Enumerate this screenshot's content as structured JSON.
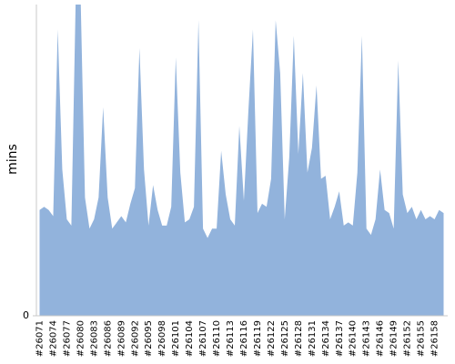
{
  "chart_data": {
    "type": "area",
    "y_label": "mins",
    "color": "#92b3dc",
    "categories": [
      "#26071",
      null,
      null,
      "#26074",
      null,
      null,
      "#26077",
      null,
      null,
      "#26080",
      null,
      null,
      "#26083",
      null,
      null,
      "#26086",
      null,
      null,
      "#26089",
      null,
      null,
      "#26092",
      null,
      null,
      "#26095",
      null,
      null,
      "#26098",
      null,
      null,
      "#26101",
      null,
      null,
      "#26104",
      null,
      null,
      "#26107",
      null,
      null,
      "#26110",
      null,
      null,
      "#26113",
      null,
      null,
      "#26116",
      null,
      null,
      "#26119",
      null,
      null,
      "#26122",
      null,
      null,
      "#26125",
      null,
      null,
      "#26128",
      null,
      null,
      "#26131",
      null,
      null,
      "#26134",
      null,
      null,
      "#26137",
      null,
      null,
      "#26140",
      null,
      null,
      "#26143",
      null,
      null,
      "#26146",
      null,
      null,
      "#26149",
      null,
      null,
      "#26152",
      null,
      null,
      "#26155",
      null,
      null,
      "#26158",
      null,
      null
    ],
    "values": [
      34,
      35,
      34,
      32,
      92,
      47,
      31,
      29,
      105,
      105,
      38,
      28,
      31,
      38,
      67,
      38,
      28,
      30,
      32,
      30,
      36,
      41,
      86,
      47,
      29,
      42,
      34,
      29,
      29,
      35,
      83,
      46,
      30,
      31,
      35,
      95,
      28,
      25,
      28,
      28,
      53,
      39,
      31,
      29,
      61,
      37,
      66,
      92,
      33,
      36,
      35,
      44,
      95,
      78,
      31,
      51,
      90,
      52,
      78,
      46,
      54,
      74,
      44,
      45,
      31,
      35,
      40,
      29,
      30,
      29,
      46,
      90,
      28,
      26,
      31,
      47,
      34,
      33,
      28,
      82,
      39,
      33,
      35,
      31,
      34,
      31,
      32,
      31,
      34,
      33
    ],
    "ylim": [
      0,
      100
    ],
    "yticks": [
      0
    ]
  }
}
